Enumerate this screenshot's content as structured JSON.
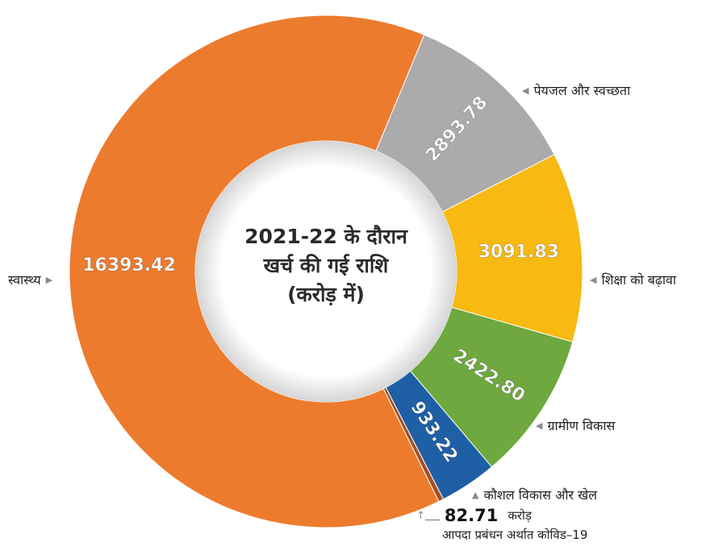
{
  "chart_data": {
    "type": "pie",
    "title": [
      "2021-22 के दौरान",
      "खर्च की गई राशि",
      "(करोड़ में)"
    ],
    "slices": [
      {
        "label": "स्वास्थ्य",
        "value": 16393.42,
        "value_label": "16393.42",
        "color": "#ED7B2E"
      },
      {
        "label": "पेयजल और स्वच्छता",
        "value": 2893.78,
        "value_label": "2893.78",
        "color": "#ABABAB"
      },
      {
        "label": "शिक्षा को बढ़ावा",
        "value": 3091.83,
        "value_label": "3091.83",
        "color": "#F7B912"
      },
      {
        "label": "ग्रामीण विकास",
        "value": 2422.8,
        "value_label": "2422.80",
        "color": "#6FA83F"
      },
      {
        "label": "कौशल विकास और खेल",
        "value": 933.22,
        "value_label": "933.22",
        "color": "#1F5FA6"
      },
      {
        "label": "आपदा प्रबंधन अर्थात कोविड–19",
        "value": 82.71,
        "value_label": "82.71",
        "color": "#A84E1F"
      }
    ]
  },
  "note": {
    "value": "82.71",
    "unit": "करोड़",
    "text": "आपदा प्रबंधन अर्थात कोविड–19"
  },
  "arrow_glyph": "◀",
  "up_arrow_glyph": "▲",
  "corner_glyph": "↑"
}
